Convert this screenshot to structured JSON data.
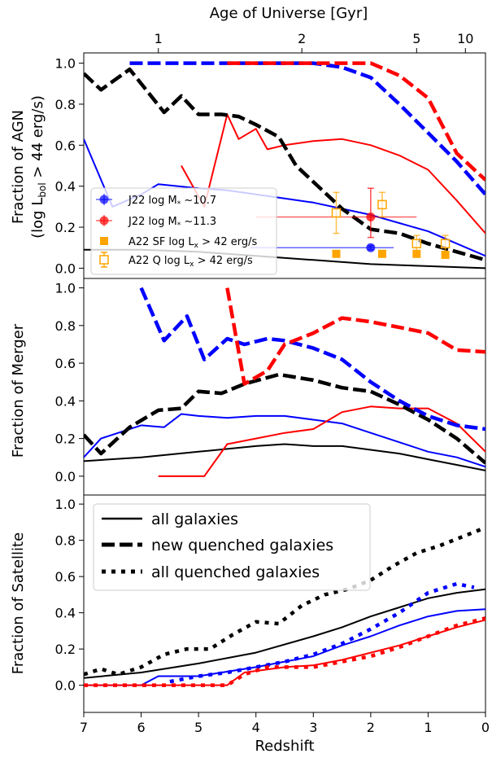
{
  "chart_data": [
    {
      "type": "line",
      "panel": "agn",
      "ylabel_line1": "Fraction of AGN",
      "ylabel_line2": "(log L",
      "ylabel_sub": "bol",
      "ylabel_rest": " > 44 erg/s)",
      "ylim": [
        -0.05,
        1.05
      ],
      "yticks": [
        0.0,
        0.2,
        0.4,
        0.6,
        0.8,
        1.0
      ],
      "ytick_labels": [
        "0.0",
        "0.2",
        "0.4",
        "0.6",
        "0.8",
        "1.0"
      ],
      "series": [
        {
          "color": "#000000",
          "style": "solid",
          "x": [
            7,
            6,
            5,
            4,
            3,
            2,
            1,
            0.5,
            0
          ],
          "y": [
            0.09,
            0.09,
            0.08,
            0.06,
            0.04,
            0.02,
            0.01,
            0.005,
            0.0
          ]
        },
        {
          "color": "#0000ff",
          "style": "solid",
          "x": [
            7,
            6.5,
            6,
            5.7,
            5,
            4.5,
            4,
            3.5,
            3,
            2.5,
            2,
            1.5,
            1,
            0.5,
            0
          ],
          "y": [
            0.63,
            0.3,
            0.36,
            0.41,
            0.39,
            0.38,
            0.36,
            0.34,
            0.32,
            0.29,
            0.26,
            0.22,
            0.18,
            0.12,
            0.06
          ]
        },
        {
          "color": "#ff0000",
          "style": "solid",
          "x": [
            5.3,
            4.9,
            4.5,
            4.3,
            4.0,
            3.8,
            3.5,
            3.0,
            2.5,
            2.0,
            1.5,
            1.0,
            0.5,
            0
          ],
          "y": [
            0.5,
            0.3,
            0.75,
            0.63,
            0.68,
            0.58,
            0.6,
            0.62,
            0.63,
            0.6,
            0.55,
            0.48,
            0.33,
            0.17
          ]
        },
        {
          "color": "#000000",
          "style": "dashed",
          "x": [
            7,
            6.7,
            6.2,
            5.6,
            5.3,
            5.0,
            4.6,
            4.3,
            4.0,
            3.6,
            3.3,
            2.5,
            2.0,
            1.5,
            1.0,
            0.5,
            0
          ],
          "y": [
            0.95,
            0.87,
            0.97,
            0.76,
            0.84,
            0.75,
            0.75,
            0.74,
            0.7,
            0.64,
            0.5,
            0.29,
            0.19,
            0.17,
            0.12,
            0.08,
            0.04
          ]
        },
        {
          "color": "#0000ff",
          "style": "dashed",
          "x": [
            6.2,
            5,
            4,
            3,
            2.5,
            2.0,
            1.5,
            1.0,
            0.5,
            0
          ],
          "y": [
            1.0,
            1.0,
            1.0,
            1.0,
            0.98,
            0.93,
            0.8,
            0.66,
            0.52,
            0.36
          ]
        },
        {
          "color": "#ff0000",
          "style": "dashed",
          "x": [
            4.5,
            3.5,
            2.5,
            2.0,
            1.5,
            1.0,
            0.5,
            0
          ],
          "y": [
            1.0,
            1.0,
            1.0,
            1.0,
            0.94,
            0.83,
            0.56,
            0.43
          ]
        }
      ],
      "legend": [
        {
          "label": "J22 log M",
          "label_sub": "*",
          "label_rest": " ~10.7",
          "color": "#0000ff",
          "marker": "circle-errorbar"
        },
        {
          "label": "J22 log M",
          "label_sub": "*",
          "label_rest": " ~11.3",
          "color": "#ff0000",
          "marker": "circle-errorbar"
        },
        {
          "label": "A22 SF log L",
          "label_sub": "x",
          "label_rest": " > 42 erg/s",
          "color": "#ffa500",
          "marker": "square-filled"
        },
        {
          "label": "A22 Q log L",
          "label_sub": "x",
          "label_rest": " > 42 erg/s",
          "color": "#ffa500",
          "marker": "square-open"
        }
      ],
      "points": [
        {
          "name": "J22 10.7",
          "color": "#0000ff",
          "marker": "circle",
          "x": 2.0,
          "y": 0.1,
          "xerr": [
            4.1,
            1.6
          ],
          "yerr": [
            0.01,
            0.01
          ]
        },
        {
          "name": "J22 11.3",
          "color": "#ff0000",
          "marker": "circle",
          "x": 2.0,
          "y": 0.25,
          "xerr": [
            4.0,
            1.2
          ],
          "yerr": [
            0.1,
            0.14
          ]
        },
        {
          "name": "A22 SF",
          "color": "#ffa500",
          "marker": "square-filled",
          "x": [
            2.6,
            1.8,
            1.2,
            0.7
          ],
          "y": [
            0.07,
            0.07,
            0.07,
            0.065
          ]
        },
        {
          "name": "A22 Q",
          "color": "#ffa500",
          "marker": "square-open",
          "x": [
            2.6,
            1.8,
            1.2,
            0.7
          ],
          "y": [
            0.27,
            0.31,
            0.12,
            0.12
          ],
          "yerr": [
            0.1,
            0.06,
            0.04,
            0.04
          ]
        }
      ]
    },
    {
      "type": "line",
      "panel": "merger",
      "ylabel": "Fraction of Merger",
      "ylim": [
        -0.1,
        1.05
      ],
      "yticks": [
        0.0,
        0.2,
        0.4,
        0.6,
        0.8,
        1.0
      ],
      "ytick_labels": [
        "0.0",
        "0.2",
        "0.4",
        "0.6",
        "0.8",
        "1.0"
      ],
      "series": [
        {
          "color": "#000000",
          "style": "solid",
          "x": [
            7,
            6,
            5,
            4,
            3.5,
            3,
            2.5,
            2,
            1.5,
            1,
            0.5,
            0
          ],
          "y": [
            0.08,
            0.1,
            0.13,
            0.16,
            0.17,
            0.16,
            0.16,
            0.14,
            0.12,
            0.09,
            0.06,
            0.03
          ]
        },
        {
          "color": "#0000ff",
          "style": "solid",
          "x": [
            7,
            6.7,
            6.0,
            5.6,
            5.3,
            5.0,
            4.5,
            4.0,
            3.5,
            3.0,
            2.5,
            2.0,
            1.5,
            1.0,
            0.5,
            0
          ],
          "y": [
            0.1,
            0.2,
            0.27,
            0.26,
            0.33,
            0.32,
            0.31,
            0.32,
            0.32,
            0.3,
            0.28,
            0.23,
            0.18,
            0.13,
            0.1,
            0.05
          ]
        },
        {
          "color": "#ff0000",
          "style": "solid",
          "x": [
            5.7,
            4.9,
            4.5,
            4.0,
            3.5,
            3.0,
            2.5,
            2.0,
            1.5,
            1.0,
            0.5,
            0
          ],
          "y": [
            0.0,
            0.0,
            0.17,
            0.2,
            0.23,
            0.25,
            0.34,
            0.37,
            0.36,
            0.36,
            0.28,
            0.13
          ]
        },
        {
          "color": "#000000",
          "style": "dashed",
          "x": [
            7,
            6.7,
            6.2,
            5.7,
            5.3,
            5.0,
            4.6,
            4.2,
            3.6,
            3.0,
            2.5,
            2.0,
            1.5,
            1.0,
            0.5,
            0
          ],
          "y": [
            0.22,
            0.12,
            0.26,
            0.35,
            0.36,
            0.45,
            0.44,
            0.49,
            0.54,
            0.51,
            0.47,
            0.45,
            0.38,
            0.3,
            0.2,
            0.07
          ]
        },
        {
          "color": "#0000ff",
          "style": "dashed",
          "x": [
            6.0,
            5.6,
            5.2,
            4.9,
            4.5,
            4.2,
            3.8,
            3.5,
            3.0,
            2.5,
            2.0,
            1.5,
            1.0,
            0.5,
            0
          ],
          "y": [
            1.0,
            0.72,
            0.85,
            0.62,
            0.73,
            0.7,
            0.73,
            0.72,
            0.68,
            0.62,
            0.5,
            0.4,
            0.32,
            0.27,
            0.25
          ]
        },
        {
          "color": "#ff0000",
          "style": "dashed",
          "x": [
            4.5,
            4.2,
            3.8,
            3.5,
            3.0,
            2.5,
            2.0,
            1.5,
            1.0,
            0.5,
            0
          ],
          "y": [
            1.0,
            0.49,
            0.56,
            0.7,
            0.76,
            0.84,
            0.82,
            0.79,
            0.76,
            0.67,
            0.66
          ]
        }
      ]
    },
    {
      "type": "line",
      "panel": "satellite",
      "ylabel": "Fraction of Satellite",
      "xlabel": "Redshift",
      "ylim": [
        -0.15,
        1.05
      ],
      "yticks": [
        0.0,
        0.2,
        0.4,
        0.6,
        0.8,
        1.0
      ],
      "ytick_labels": [
        "0.0",
        "0.2",
        "0.4",
        "0.6",
        "0.8",
        "1.0"
      ],
      "xlim": [
        7,
        0
      ],
      "xticks": [
        7,
        6,
        5,
        4,
        3,
        2,
        1,
        0
      ],
      "xtick_labels": [
        "7",
        "6",
        "5",
        "4",
        "3",
        "2",
        "1",
        "0"
      ],
      "top_axis_label": "Age of Universe [Gyr]",
      "top_ticks": [
        {
          "label": "1",
          "z": 5.7
        },
        {
          "label": "2",
          "z": 3.2
        },
        {
          "label": "5",
          "z": 1.2
        },
        {
          "label": "10",
          "z": 0.35
        }
      ],
      "series": [
        {
          "color": "#000000",
          "style": "solid",
          "x": [
            7,
            6,
            5,
            4,
            3,
            2.5,
            2,
            1.5,
            1,
            0.5,
            0
          ],
          "y": [
            0.04,
            0.07,
            0.12,
            0.18,
            0.27,
            0.32,
            0.38,
            0.43,
            0.48,
            0.51,
            0.53
          ]
        },
        {
          "color": "#0000ff",
          "style": "solid",
          "x": [
            7,
            6,
            5.7,
            5,
            4,
            3,
            2.5,
            2,
            1.5,
            1,
            0.5,
            0
          ],
          "y": [
            0.0,
            0.0,
            0.05,
            0.05,
            0.1,
            0.16,
            0.22,
            0.27,
            0.33,
            0.38,
            0.41,
            0.42
          ]
        },
        {
          "color": "#ff0000",
          "style": "solid",
          "x": [
            7,
            4.5,
            4.2,
            3.5,
            3,
            2.5,
            2,
            1.5,
            1,
            0.5,
            0
          ],
          "y": [
            0.0,
            0.0,
            0.07,
            0.1,
            0.11,
            0.14,
            0.18,
            0.22,
            0.27,
            0.32,
            0.36
          ]
        },
        {
          "color": "#000000",
          "style": "dotted",
          "x": [
            7,
            6.7,
            6.4,
            6,
            5.6,
            5.2,
            4.8,
            4.4,
            4.0,
            3.6,
            3.2,
            2.8,
            2.4,
            2.0,
            1.6,
            1.2,
            0.8,
            0.4,
            0
          ],
          "y": [
            0.06,
            0.09,
            0.06,
            0.1,
            0.17,
            0.2,
            0.2,
            0.28,
            0.35,
            0.34,
            0.44,
            0.5,
            0.53,
            0.58,
            0.66,
            0.73,
            0.77,
            0.82,
            0.87
          ]
        },
        {
          "color": "#0000ff",
          "style": "dotted",
          "x": [
            5.5,
            5,
            4.5,
            4,
            3.5,
            3,
            2.5,
            2,
            1.5,
            1,
            0.5,
            0.2
          ],
          "y": [
            0.02,
            0.05,
            0.07,
            0.1,
            0.13,
            0.17,
            0.23,
            0.31,
            0.4,
            0.51,
            0.56,
            0.54
          ]
        },
        {
          "color": "#ff0000",
          "style": "dotted",
          "x": [
            7,
            4.5,
            4.2,
            3.8,
            3.5,
            3.0,
            2.5,
            2.0,
            1.5,
            1.0,
            0.5,
            0
          ],
          "y": [
            0.0,
            0.0,
            0.06,
            0.1,
            0.1,
            0.1,
            0.13,
            0.16,
            0.21,
            0.27,
            0.33,
            0.37
          ]
        }
      ],
      "legend": [
        {
          "label": "all galaxies",
          "style": "solid"
        },
        {
          "label": "new quenched galaxies",
          "style": "dashed"
        },
        {
          "label": "all quenched galaxies",
          "style": "dotted"
        }
      ]
    }
  ]
}
